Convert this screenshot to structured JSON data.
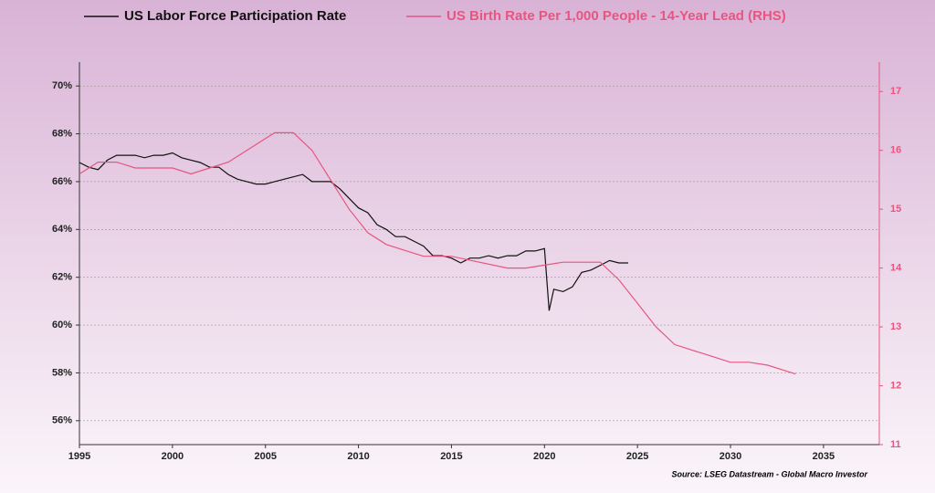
{
  "chart_data": {
    "type": "line",
    "source": "Source: LSEG Datastream - Global Macro Investor",
    "xlim": [
      1995,
      2038
    ],
    "xticks": [
      1995,
      2000,
      2005,
      2010,
      2015,
      2020,
      2025,
      2030,
      2035
    ],
    "ylim": [
      55,
      71
    ],
    "yticks": [
      {
        "value": 56,
        "label": "56%"
      },
      {
        "value": 58,
        "label": "58%"
      },
      {
        "value": 60,
        "label": "60%"
      },
      {
        "value": 62,
        "label": "62%"
      },
      {
        "value": 64,
        "label": "64%"
      },
      {
        "value": 66,
        "label": "66%"
      },
      {
        "value": 68,
        "label": "68%"
      },
      {
        "value": 70,
        "label": "70%"
      }
    ],
    "y2lim": [
      11,
      17.5
    ],
    "y2ticks": [
      11,
      12,
      13,
      14,
      15,
      16,
      17
    ],
    "grid": true,
    "series": [
      {
        "name": "US Labor Force Participation Rate",
        "color": "#111111",
        "x": [
          1995,
          1995.5,
          1996,
          1996.5,
          1997,
          1997.5,
          1998,
          1998.5,
          1999,
          1999.5,
          2000,
          2000.5,
          2001,
          2001.5,
          2002,
          2002.5,
          2003,
          2003.5,
          2004,
          2004.5,
          2005,
          2005.5,
          2006,
          2006.5,
          2007,
          2007.5,
          2008,
          2008.5,
          2009,
          2009.5,
          2010,
          2010.5,
          2011,
          2011.5,
          2012,
          2012.5,
          2013,
          2013.5,
          2014,
          2014.5,
          2015,
          2015.5,
          2016,
          2016.5,
          2017,
          2017.5,
          2018,
          2018.5,
          2019,
          2019.5,
          2020,
          2020.25,
          2020.5,
          2021,
          2021.5,
          2022,
          2022.5,
          2023,
          2023.5,
          2024,
          2024.5
        ],
        "values": [
          66.8,
          66.6,
          66.5,
          66.9,
          67.1,
          67.1,
          67.1,
          67.0,
          67.1,
          67.1,
          67.2,
          67.0,
          66.9,
          66.8,
          66.6,
          66.6,
          66.3,
          66.1,
          66.0,
          65.9,
          65.9,
          66.0,
          66.1,
          66.2,
          66.3,
          66.0,
          66.0,
          66.0,
          65.7,
          65.3,
          64.9,
          64.7,
          64.2,
          64.0,
          63.7,
          63.7,
          63.5,
          63.3,
          62.9,
          62.9,
          62.8,
          62.6,
          62.8,
          62.8,
          62.9,
          62.8,
          62.9,
          62.9,
          63.1,
          63.1,
          63.2,
          60.6,
          61.5,
          61.4,
          61.6,
          62.2,
          62.3,
          62.5,
          62.7,
          62.6,
          62.6
        ]
      },
      {
        "name": "US Birth Rate Per 1,000 People - 14-Year Lead (RHS)",
        "color": "#e8557e",
        "axis": "y2",
        "x": [
          1995,
          1996,
          1997,
          1998,
          1999,
          2000,
          2001,
          2002,
          2003,
          2004,
          2005,
          2005.5,
          2006.5,
          2007.5,
          2008.5,
          2009.5,
          2010.5,
          2011.5,
          2012.5,
          2013.5,
          2015,
          2016.5,
          2018,
          2019,
          2020,
          2021,
          2022,
          2023,
          2024,
          2025,
          2026,
          2027,
          2028,
          2029,
          2030,
          2031,
          2032,
          2033,
          2033.5
        ],
        "values": [
          15.6,
          15.8,
          15.8,
          15.7,
          15.7,
          15.7,
          15.6,
          15.7,
          15.8,
          16.0,
          16.2,
          16.3,
          16.3,
          16.0,
          15.5,
          15.0,
          14.6,
          14.4,
          14.3,
          14.2,
          14.2,
          14.1,
          14.0,
          14.0,
          14.05,
          14.1,
          14.1,
          14.1,
          13.8,
          13.4,
          13.0,
          12.7,
          12.6,
          12.5,
          12.4,
          12.4,
          12.35,
          12.25,
          12.2
        ]
      }
    ]
  }
}
